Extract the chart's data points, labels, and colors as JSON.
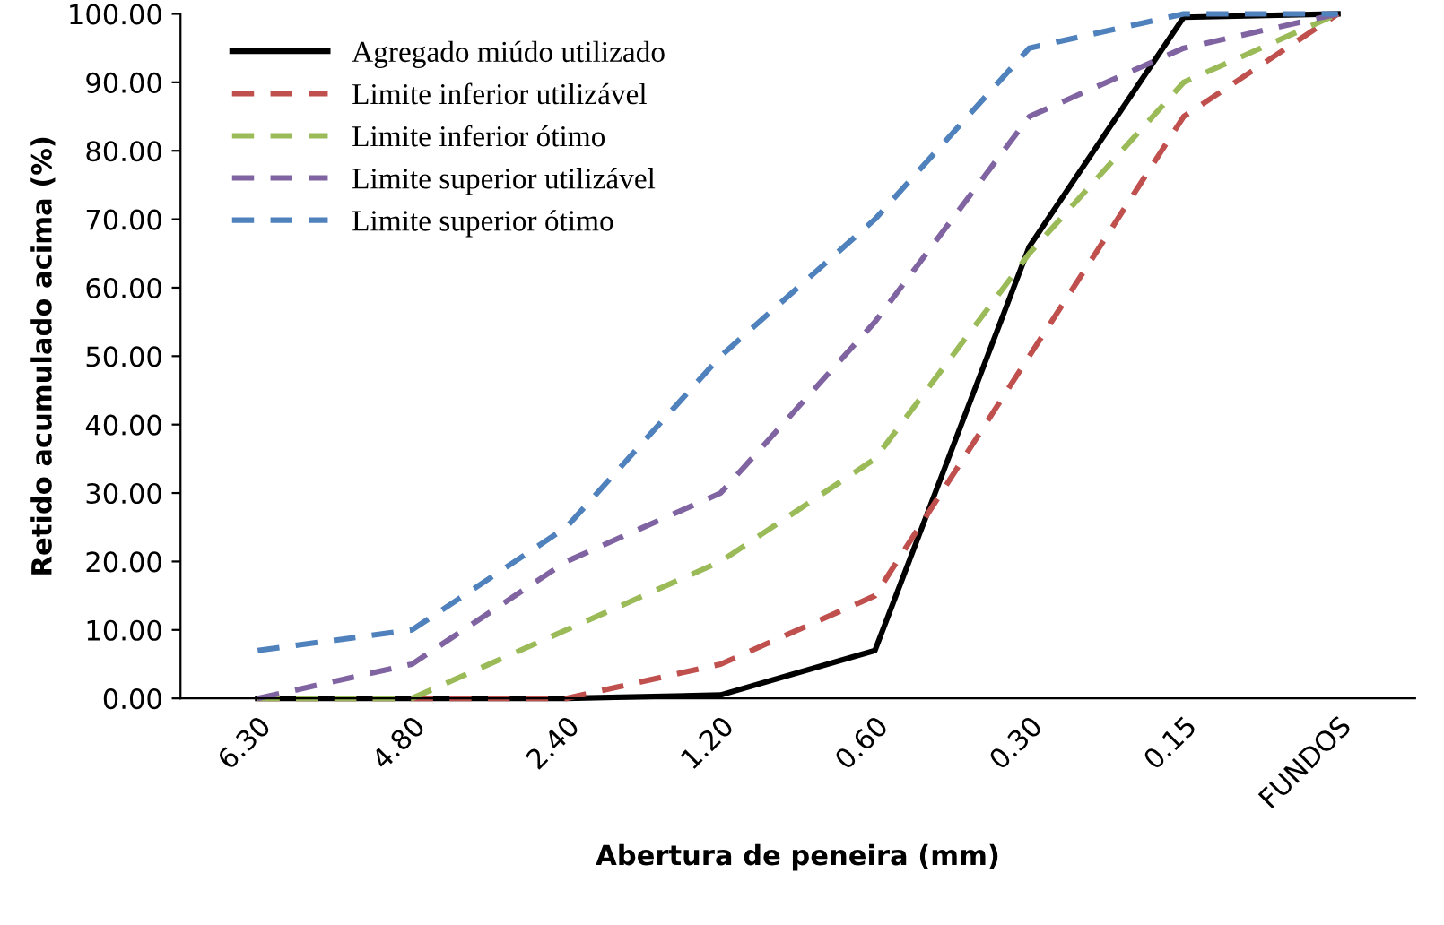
{
  "chart_data": {
    "type": "line",
    "xlabel": "Abertura de peneira (mm)",
    "ylabel": "Retido acumulado acima (%)",
    "categories": [
      "6.30",
      "4.80",
      "2.40",
      "1.20",
      "0.60",
      "0.30",
      "0.15",
      "FUNDOS"
    ],
    "series": [
      {
        "name": "Agregado miúdo utilizado",
        "color": "#000000",
        "line_style": "solid",
        "values": [
          0,
          0,
          0,
          0.5,
          7,
          66,
          99.5,
          100
        ]
      },
      {
        "name": "Limite inferior utilizável",
        "color": "#c0504d",
        "line_style": "dashed",
        "values": [
          0,
          0,
          0,
          5,
          15,
          50,
          85,
          100
        ]
      },
      {
        "name": "Limite inferior ótimo",
        "color": "#9bbb59",
        "line_style": "dashed",
        "values": [
          0,
          0,
          10,
          20,
          35,
          65,
          90,
          100
        ]
      },
      {
        "name": "Limite superior utilizável",
        "color": "#8064a2",
        "line_style": "dashed",
        "values": [
          0,
          5,
          20,
          30,
          55,
          85,
          95,
          100
        ]
      },
      {
        "name": "Limite superior ótimo",
        "color": "#4f81bd",
        "line_style": "dashed",
        "values": [
          7,
          10,
          25,
          50,
          70,
          95,
          100,
          100
        ]
      }
    ],
    "ylim": [
      0,
      100
    ],
    "yticks": [
      {
        "value": 0,
        "label": "0.00"
      },
      {
        "value": 10,
        "label": "10.00"
      },
      {
        "value": 20,
        "label": "20.00"
      },
      {
        "value": 30,
        "label": "30.00"
      },
      {
        "value": 40,
        "label": "40.00"
      },
      {
        "value": 50,
        "label": "50.00"
      },
      {
        "value": 60,
        "label": "60.00"
      },
      {
        "value": 70,
        "label": "70.00"
      },
      {
        "value": 80,
        "label": "80.00"
      },
      {
        "value": 90,
        "label": "90.00"
      },
      {
        "value": 100,
        "label": "100.00"
      }
    ],
    "grid": false,
    "legend": "top left",
    "marker": "none"
  }
}
